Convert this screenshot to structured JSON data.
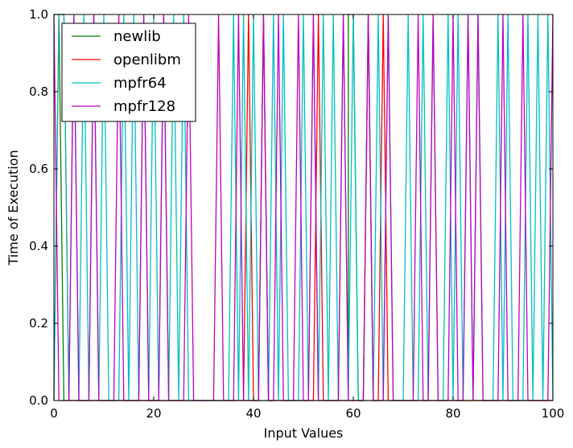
{
  "chart_data": {
    "type": "line",
    "title": "",
    "xlabel": "Input Values",
    "ylabel": "Time of Execution",
    "xlim": [
      0,
      100
    ],
    "ylim": [
      0,
      1
    ],
    "x_ticks": [
      0,
      20,
      40,
      60,
      80,
      100
    ],
    "x_tick_labels": [
      "0",
      "20",
      "40",
      "60",
      "80",
      "100"
    ],
    "y_ticks": [
      0.0,
      0.2,
      0.4,
      0.6,
      0.8,
      1.0
    ],
    "y_tick_labels": [
      "0.0",
      "0.2",
      "0.4",
      "0.6",
      "0.8",
      "1.0"
    ],
    "grid": false,
    "legend_position": "upper-left",
    "series": [
      {
        "name": "newlib",
        "color": "#008000",
        "points": [
          [
            0,
            1
          ],
          [
            1,
            1
          ],
          [
            2,
            0
          ],
          [
            3,
            0
          ],
          [
            59,
            0
          ],
          [
            59,
            1
          ],
          [
            60,
            1
          ],
          [
            61,
            0
          ],
          [
            62,
            0
          ],
          [
            100,
            0
          ]
        ]
      },
      {
        "name": "openlibm",
        "color": "#ff0000",
        "points": [
          [
            0,
            0
          ],
          [
            1,
            1
          ],
          [
            2,
            1
          ],
          [
            3,
            0
          ],
          [
            38,
            0
          ],
          [
            39,
            1
          ],
          [
            40,
            0
          ],
          [
            41,
            0
          ],
          [
            42,
            1
          ],
          [
            43,
            0
          ],
          [
            52,
            0
          ],
          [
            53,
            1
          ],
          [
            54,
            0
          ],
          [
            62,
            0
          ],
          [
            63,
            1
          ],
          [
            64,
            0
          ],
          [
            65,
            0
          ],
          [
            66,
            1
          ],
          [
            67,
            0
          ],
          [
            100,
            0
          ]
        ]
      },
      {
        "name": "mpfr64",
        "color": "#00bfbf",
        "points": [
          [
            0,
            0
          ],
          [
            1,
            1
          ],
          [
            2,
            1
          ],
          [
            3,
            0
          ],
          [
            4,
            1
          ],
          [
            5,
            0
          ],
          [
            6,
            1
          ],
          [
            7,
            0
          ],
          [
            8,
            1
          ],
          [
            9,
            0
          ],
          [
            10,
            1
          ],
          [
            11,
            0
          ],
          [
            13,
            0
          ],
          [
            14,
            1
          ],
          [
            15,
            0
          ],
          [
            16,
            1
          ],
          [
            17,
            0
          ],
          [
            18,
            1
          ],
          [
            19,
            0
          ],
          [
            20,
            1
          ],
          [
            21,
            0
          ],
          [
            22,
            1
          ],
          [
            23,
            0
          ],
          [
            24,
            1
          ],
          [
            25,
            0
          ],
          [
            26,
            1
          ],
          [
            27,
            0
          ],
          [
            35,
            0
          ],
          [
            36,
            1
          ],
          [
            37,
            0
          ],
          [
            38,
            1
          ],
          [
            39,
            0
          ],
          [
            40,
            1
          ],
          [
            41,
            0
          ],
          [
            42,
            1
          ],
          [
            43,
            0
          ],
          [
            44,
            1
          ],
          [
            45,
            0
          ],
          [
            46,
            1
          ],
          [
            47,
            0
          ],
          [
            49,
            0
          ],
          [
            50,
            1
          ],
          [
            51,
            0
          ],
          [
            52,
            1
          ],
          [
            53,
            0
          ],
          [
            54,
            1
          ],
          [
            55,
            0
          ],
          [
            56,
            1
          ],
          [
            57,
            0
          ],
          [
            58,
            1
          ],
          [
            59,
            0
          ],
          [
            60,
            1
          ],
          [
            61,
            0
          ],
          [
            62,
            0
          ],
          [
            63,
            1
          ],
          [
            64,
            0
          ],
          [
            65,
            1
          ],
          [
            66,
            0
          ],
          [
            67,
            1
          ],
          [
            68,
            0
          ],
          [
            70,
            0
          ],
          [
            71,
            1
          ],
          [
            72,
            0
          ],
          [
            73,
            0
          ],
          [
            74,
            1
          ],
          [
            75,
            0
          ],
          [
            76,
            1
          ],
          [
            77,
            0
          ],
          [
            78,
            0
          ],
          [
            79,
            1
          ],
          [
            80,
            0
          ],
          [
            81,
            1
          ],
          [
            82,
            0
          ],
          [
            83,
            1
          ],
          [
            84,
            0
          ],
          [
            85,
            1
          ],
          [
            86,
            0
          ],
          [
            88,
            0
          ],
          [
            89,
            1
          ],
          [
            90,
            0
          ],
          [
            91,
            1
          ],
          [
            92,
            0
          ],
          [
            94,
            0
          ],
          [
            95,
            1
          ],
          [
            96,
            0
          ],
          [
            97,
            1
          ],
          [
            98,
            0
          ],
          [
            99,
            1
          ],
          [
            100,
            0
          ]
        ]
      },
      {
        "name": "mpfr128",
        "color": "#bf00bf",
        "points": [
          [
            0,
            1
          ],
          [
            1,
            0
          ],
          [
            3,
            0
          ],
          [
            4,
            1
          ],
          [
            5,
            0
          ],
          [
            7,
            0
          ],
          [
            8,
            1
          ],
          [
            9,
            0
          ],
          [
            12,
            0
          ],
          [
            13,
            1
          ],
          [
            14,
            0
          ],
          [
            17,
            0
          ],
          [
            18,
            1
          ],
          [
            19,
            0
          ],
          [
            21,
            0
          ],
          [
            22,
            1
          ],
          [
            23,
            0
          ],
          [
            26,
            0
          ],
          [
            27,
            1
          ],
          [
            28,
            0
          ],
          [
            32,
            0
          ],
          [
            33,
            1
          ],
          [
            34,
            0
          ],
          [
            36,
            0
          ],
          [
            37,
            1
          ],
          [
            38,
            0
          ],
          [
            41,
            0
          ],
          [
            42,
            1
          ],
          [
            43,
            0
          ],
          [
            44,
            0
          ],
          [
            45,
            1
          ],
          [
            46,
            0
          ],
          [
            48,
            0
          ],
          [
            49,
            1
          ],
          [
            50,
            0
          ],
          [
            51,
            0
          ],
          [
            52,
            1
          ],
          [
            53,
            0
          ],
          [
            57,
            0
          ],
          [
            58,
            1
          ],
          [
            59,
            0
          ],
          [
            62,
            0
          ],
          [
            63,
            1
          ],
          [
            64,
            0
          ],
          [
            66,
            0
          ],
          [
            67,
            1
          ],
          [
            68,
            0
          ],
          [
            72,
            0
          ],
          [
            73,
            1
          ],
          [
            74,
            0
          ],
          [
            75,
            0
          ],
          [
            76,
            1
          ],
          [
            77,
            0
          ],
          [
            79,
            0
          ],
          [
            80,
            1
          ],
          [
            81,
            0
          ],
          [
            82,
            0
          ],
          [
            83,
            1
          ],
          [
            84,
            0
          ],
          [
            85,
            1
          ],
          [
            86,
            0
          ],
          [
            89,
            0
          ],
          [
            90,
            1
          ],
          [
            91,
            0
          ],
          [
            93,
            0
          ],
          [
            94,
            1
          ],
          [
            95,
            0
          ],
          [
            99,
            0
          ],
          [
            100,
            1
          ]
        ]
      }
    ]
  }
}
